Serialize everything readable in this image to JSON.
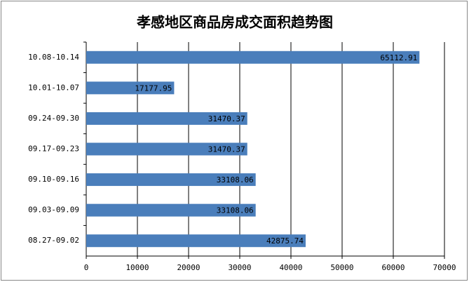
{
  "chart_data": {
    "type": "barh",
    "title": "孝感地区商品房成交面积趋势图",
    "categories": [
      "10.08-10.14",
      "10.01-10.07",
      "09.24-09.30",
      "09.17-09.23",
      "09.10-09.16",
      "09.03-09.09",
      "08.27-09.02"
    ],
    "values": [
      65112.91,
      17177.95,
      31470.37,
      31470.37,
      33108.06,
      33108.06,
      42875.74
    ],
    "color": "#4a7ebb",
    "xlim": [
      0,
      70000
    ],
    "xticks": [
      0,
      10000,
      20000,
      30000,
      40000,
      50000,
      60000,
      70000
    ],
    "grid": true
  }
}
